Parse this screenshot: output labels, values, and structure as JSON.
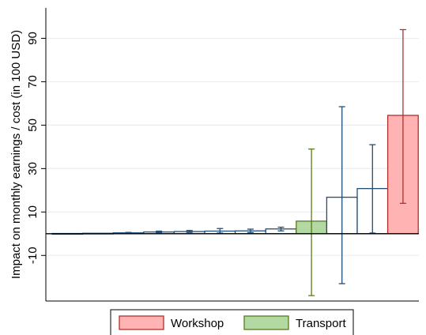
{
  "chart_data": {
    "type": "bar",
    "ylabel": "Impact on monthly earnings / cost (in 100 USD)",
    "yticks": [
      -10,
      10,
      30,
      50,
      70,
      90
    ],
    "ylim": [
      -31,
      104
    ],
    "grid": true,
    "legend_position": "bottom",
    "legend": [
      {
        "label": "Workshop",
        "fill": "#ffb3b3",
        "stroke": "#b03030"
      },
      {
        "label": "Transport",
        "fill": "#b3d9a3",
        "stroke": "#5a7a20"
      }
    ],
    "colors": {
      "default_fill": "#ffffff",
      "default_stroke": "#1f4e79",
      "workshop_fill": "#ffb3b3",
      "workshop_stroke": "#b03030",
      "transport_fill": "#b3d9a3",
      "transport_stroke": "#5a7a20"
    },
    "bars": [
      {
        "value": 0.1,
        "ci_low": null,
        "ci_high": null,
        "group": "default"
      },
      {
        "value": 0.2,
        "ci_low": null,
        "ci_high": null,
        "group": "default"
      },
      {
        "value": 0.4,
        "ci_low": 0.2,
        "ci_high": 0.6,
        "group": "default"
      },
      {
        "value": 0.8,
        "ci_low": 0.5,
        "ci_high": 1.2,
        "group": "default"
      },
      {
        "value": 1.0,
        "ci_low": 0.6,
        "ci_high": 1.5,
        "group": "default"
      },
      {
        "value": 1.2,
        "ci_low": 0.3,
        "ci_high": 2.4,
        "group": "default"
      },
      {
        "value": 1.3,
        "ci_low": 0.5,
        "ci_high": 2.1,
        "group": "default"
      },
      {
        "value": 2.2,
        "ci_low": 1.3,
        "ci_high": 3.0,
        "group": "default"
      },
      {
        "value": 5.8,
        "ci_low": -28.5,
        "ci_high": 39.0,
        "group": "transport"
      },
      {
        "value": 16.8,
        "ci_low": -23.0,
        "ci_high": 58.5,
        "group": "default"
      },
      {
        "value": 20.8,
        "ci_low": 0.3,
        "ci_high": 41.0,
        "group": "default"
      },
      {
        "value": 54.5,
        "ci_low": 14.0,
        "ci_high": 94.0,
        "group": "workshop"
      }
    ]
  }
}
